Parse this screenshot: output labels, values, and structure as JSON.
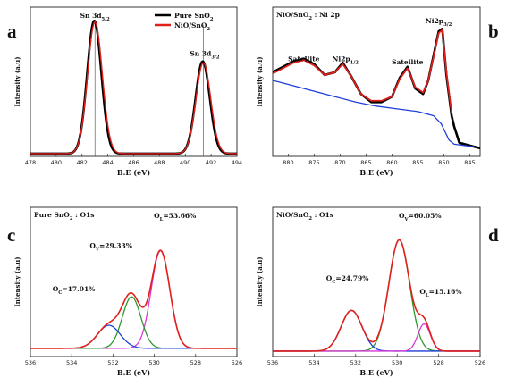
{
  "chart_data": [
    {
      "panel_label": "a",
      "type": "line",
      "xlabel": "B.E (eV)",
      "ylabel": "Intensity (a.u)",
      "xlim": [
        478,
        494
      ],
      "xticks": [
        478,
        480,
        482,
        484,
        486,
        488,
        490,
        492,
        494
      ],
      "ylim": [
        0,
        1.1
      ],
      "annotations": [
        {
          "text": "Sn 3d5/2",
          "x": 483,
          "y": 1.02
        },
        {
          "text": "Sn 3d3/2",
          "x": 491.5,
          "y": 0.74
        }
      ],
      "reference_lines_x": [
        483.0,
        491.4
      ],
      "legend": {
        "position": "top-right",
        "entries": [
          "Pure SnO2",
          "NiO/SnO2"
        ]
      },
      "series": [
        {
          "name": "Pure SnO2",
          "color": "#000000",
          "peaks": [
            {
              "center": 482.95,
              "height": 0.98,
              "width": 0.55
            },
            {
              "center": 491.35,
              "height": 0.68,
              "width": 0.55
            }
          ],
          "baseline": 0.02
        },
        {
          "name": "NiO/SnO2",
          "color": "#e0201b",
          "peaks": [
            {
              "center": 483.0,
              "height": 0.97,
              "width": 0.57
            },
            {
              "center": 491.4,
              "height": 0.67,
              "width": 0.57
            }
          ],
          "baseline": 0.02
        }
      ]
    },
    {
      "panel_label": "b",
      "title": "NiO/SnO2 : Ni 2p",
      "type": "line",
      "xlabel": "B.E (eV)",
      "ylabel": "Intensity (a.u)",
      "xlim": [
        883,
        843
      ],
      "xticks": [
        880,
        875,
        870,
        865,
        860,
        855,
        850,
        845
      ],
      "ylim": [
        0,
        1.1
      ],
      "annotations": [
        {
          "text": "Satellite",
          "x": 877,
          "y": 0.7
        },
        {
          "text": "Ni2p1/2",
          "x": 869,
          "y": 0.7
        },
        {
          "text": "Satellite",
          "x": 857,
          "y": 0.68
        },
        {
          "text": "Ni2p3/2",
          "x": 851,
          "y": 0.98
        }
      ],
      "series": [
        {
          "name": "raw",
          "color": "#000000",
          "points": [
            [
              883,
              0.62
            ],
            [
              881,
              0.66
            ],
            [
              879,
              0.7
            ],
            [
              877,
              0.72
            ],
            [
              875,
              0.68
            ],
            [
              873,
              0.6
            ],
            [
              871,
              0.62
            ],
            [
              869.5,
              0.69
            ],
            [
              868,
              0.6
            ],
            [
              866,
              0.46
            ],
            [
              864,
              0.4
            ],
            [
              862,
              0.4
            ],
            [
              860,
              0.44
            ],
            [
              858.5,
              0.58
            ],
            [
              857,
              0.66
            ],
            [
              855.5,
              0.5
            ],
            [
              854,
              0.46
            ],
            [
              853,
              0.56
            ],
            [
              852,
              0.74
            ],
            [
              851,
              0.92
            ],
            [
              850.3,
              0.94
            ],
            [
              849.5,
              0.6
            ],
            [
              848.5,
              0.3
            ],
            [
              848,
              0.22
            ],
            [
              847,
              0.1
            ],
            [
              845,
              0.08
            ],
            [
              843,
              0.06
            ]
          ]
        },
        {
          "name": "fit",
          "color": "#e0201b",
          "points": [
            [
              883,
              0.61
            ],
            [
              881,
              0.65
            ],
            [
              879,
              0.69
            ],
            [
              877,
              0.71
            ],
            [
              875,
              0.67
            ],
            [
              873,
              0.6
            ],
            [
              871,
              0.62
            ],
            [
              869.5,
              0.68
            ],
            [
              868,
              0.6
            ],
            [
              866,
              0.46
            ],
            [
              864,
              0.41
            ],
            [
              862,
              0.41
            ],
            [
              860,
              0.44
            ],
            [
              858.5,
              0.57
            ],
            [
              857,
              0.65
            ],
            [
              855.5,
              0.51
            ],
            [
              854,
              0.47
            ],
            [
              853,
              0.56
            ],
            [
              852,
              0.73
            ],
            [
              851,
              0.91
            ],
            [
              850.3,
              0.93
            ],
            [
              849.5,
              0.62
            ],
            [
              848.5,
              0.32
            ]
          ]
        },
        {
          "name": "background",
          "color": "#1f3fd8",
          "points": [
            [
              883,
              0.56
            ],
            [
              879,
              0.52
            ],
            [
              875,
              0.48
            ],
            [
              871,
              0.44
            ],
            [
              867,
              0.4
            ],
            [
              863,
              0.37
            ],
            [
              859,
              0.35
            ],
            [
              855,
              0.33
            ],
            [
              852,
              0.3
            ],
            [
              850.5,
              0.24
            ],
            [
              849,
              0.12
            ],
            [
              848,
              0.09
            ],
            [
              846,
              0.08
            ],
            [
              844,
              0.07
            ]
          ]
        }
      ]
    },
    {
      "panel_label": "c",
      "title": "Pure SnO2 : O1s",
      "type": "line",
      "xlabel": "B.E (eV)",
      "ylabel": "Intensity (a.u)",
      "xlim": [
        536,
        526
      ],
      "xticks": [
        536,
        534,
        532,
        530,
        528,
        526
      ],
      "ylim": [
        0,
        1.1
      ],
      "annotations": [
        {
          "text": "OL=53.66%",
          "x": 529.0,
          "y": 1.02
        },
        {
          "text": "OV=29.33%",
          "x": 532.1,
          "y": 0.8
        },
        {
          "text": "OC=17.01%",
          "x": 533.9,
          "y": 0.48
        }
      ],
      "series": [
        {
          "name": "envelope",
          "color": "#e0201b",
          "peak_sum": true
        },
        {
          "name": "OL",
          "color": "#d63ad6",
          "peaks": [
            {
              "center": 529.7,
              "height": 0.72,
              "width": 0.45
            }
          ]
        },
        {
          "name": "OV",
          "color": "#2c9a2c",
          "peaks": [
            {
              "center": 531.1,
              "height": 0.38,
              "width": 0.45
            }
          ]
        },
        {
          "name": "OC",
          "color": "#1f3fd8",
          "peaks": [
            {
              "center": 532.2,
              "height": 0.17,
              "width": 0.55
            }
          ]
        }
      ],
      "baseline": 0.06
    },
    {
      "panel_label": "d",
      "title": "NiO/SnO2 : O1s",
      "type": "line",
      "xlabel": "B.E (eV)",
      "ylabel": "Intensity (a.u)",
      "xlim": [
        536,
        526
      ],
      "xticks": [
        536,
        534,
        532,
        530,
        528,
        526
      ],
      "ylim": [
        0,
        1.1
      ],
      "annotations": [
        {
          "text": "OV=60.05%",
          "x": 528.9,
          "y": 1.02
        },
        {
          "text": "OC=24.79%",
          "x": 532.4,
          "y": 0.56
        },
        {
          "text": "OL=15.16%",
          "x": 527.9,
          "y": 0.46
        }
      ],
      "series": [
        {
          "name": "envelope",
          "color": "#e0201b",
          "peak_sum": true
        },
        {
          "name": "OV",
          "color": "#2c9a2c",
          "peaks": [
            {
              "center": 529.9,
              "height": 0.82,
              "width": 0.5
            }
          ]
        },
        {
          "name": "OC",
          "color": "#1f3fd8",
          "peaks": [
            {
              "center": 532.2,
              "height": 0.3,
              "width": 0.5
            }
          ]
        },
        {
          "name": "OL",
          "color": "#d63ad6",
          "peaks": [
            {
              "center": 528.7,
              "height": 0.2,
              "width": 0.3
            }
          ]
        }
      ],
      "baseline": 0.04
    }
  ]
}
